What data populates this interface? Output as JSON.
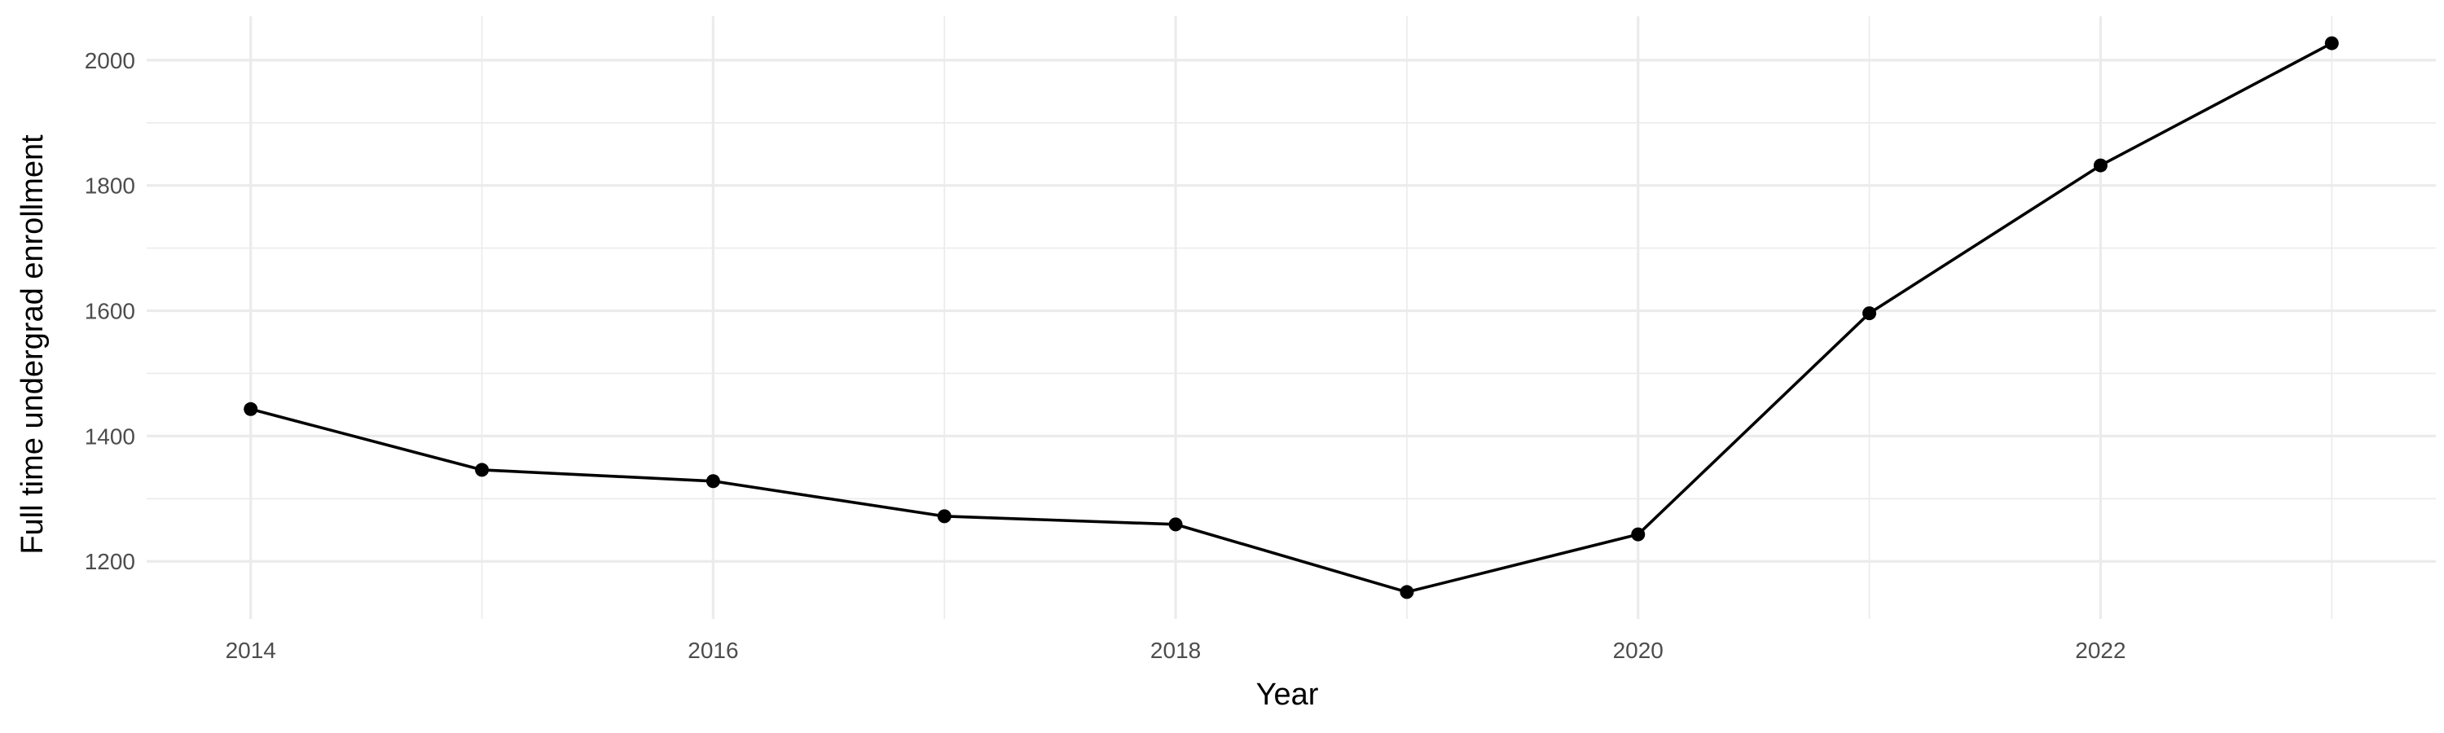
{
  "chart_data": {
    "type": "line",
    "title": "",
    "xlabel": "Year",
    "ylabel": "Full time undergrad enrollment",
    "x": [
      2014,
      2015,
      2016,
      2017,
      2018,
      2019,
      2020,
      2021,
      2022,
      2023
    ],
    "series": [
      {
        "values": [
          1443,
          1346,
          1328,
          1272,
          1259,
          1151,
          1243,
          1596,
          1832,
          2027
        ]
      }
    ],
    "x_ticks": [
      2014,
      2016,
      2018,
      2020,
      2022
    ],
    "x_tick_labels": [
      "2014",
      "2016",
      "2018",
      "2020",
      "2022"
    ],
    "y_ticks": [
      1200,
      1400,
      1600,
      1800,
      2000
    ],
    "y_tick_labels": [
      "1200",
      "1400",
      "1600",
      "1800",
      "2000"
    ],
    "xlim": [
      2013.55,
      2023.45
    ],
    "ylim": [
      1108,
      2070
    ],
    "grid": true,
    "legend": "none",
    "colors": {
      "line": "#000000",
      "points": "#000000",
      "grid": "#ebebeb",
      "tick_text": "#4d4d4d",
      "axis_title": "#000000",
      "background": "#ffffff"
    }
  }
}
